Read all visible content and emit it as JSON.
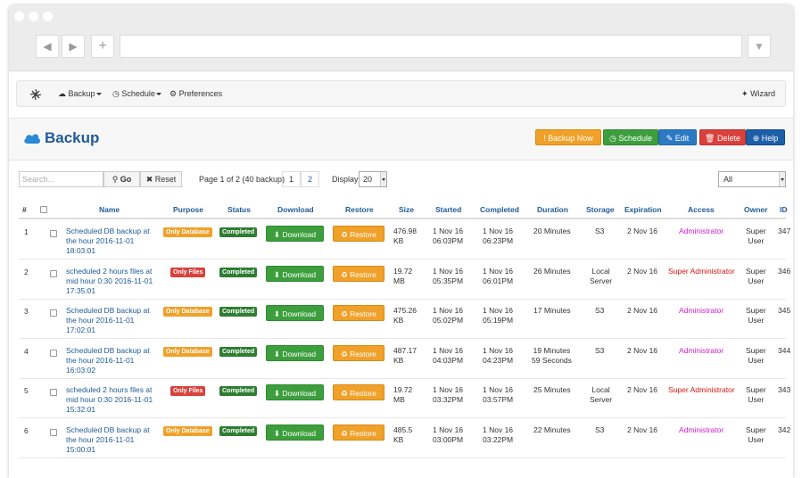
{
  "toolbar": {
    "backup_label": "Backup",
    "schedule_label": "Schedule",
    "preferences_label": "Preferences",
    "wizard_label": "Wizard"
  },
  "header": {
    "title": "Backup",
    "buttons": {
      "backup_now": "Backup Now",
      "schedule": "Schedule",
      "edit": "Edit",
      "delete": "Delete",
      "help": "Help"
    }
  },
  "controls": {
    "search_placeholder": "Search...",
    "go_label": "Go",
    "reset_label": "Reset",
    "page_info": "Page 1 of 2 (40 backup)",
    "pages": [
      "1",
      "2"
    ],
    "display_label": "Display",
    "display_value": "20",
    "filter_value": "All"
  },
  "columns": [
    "#",
    "Name",
    "Purpose",
    "Status",
    "Download",
    "Restore",
    "Size",
    "Started",
    "Completed",
    "Duration",
    "Storage",
    "Expiration",
    "Access",
    "Owner",
    "ID"
  ],
  "buttons": {
    "download": "Download",
    "restore": "Restore"
  },
  "colors": {
    "link": "#1f5a96",
    "only_database": "#f0a12a",
    "only_files": "#d9413c",
    "completed": "#2e7d32",
    "administrator": "#d21bd2",
    "super_administrator": "#d9150f"
  },
  "rows": [
    {
      "num": "1",
      "name": [
        "Scheduled DB backup at",
        "the hour 2016-11-01",
        "18:03:01"
      ],
      "purpose": "Only Database",
      "status": "Completed",
      "size": [
        "476.98",
        "KB"
      ],
      "started": [
        "1 Nov 16",
        "06:03PM"
      ],
      "completed": [
        "1 Nov 16",
        "06:23PM"
      ],
      "duration": [
        "20 Minutes"
      ],
      "storage": [
        "S3"
      ],
      "expiration": "2 Nov 16",
      "access": "Administrator",
      "owner": [
        "Super",
        "User"
      ],
      "id": "347"
    },
    {
      "num": "2",
      "name": [
        "scheduled 2 hours files at",
        "mid hour 0:30 2016-11-01",
        "17:35:01"
      ],
      "purpose": "Only Files",
      "status": "Completed",
      "size": [
        "19.72",
        "MB"
      ],
      "started": [
        "1 Nov 16",
        "05:35PM"
      ],
      "completed": [
        "1 Nov 16",
        "06:01PM"
      ],
      "duration": [
        "26 Minutes"
      ],
      "storage": [
        "Local",
        "Server"
      ],
      "expiration": "2 Nov 16",
      "access": "Super Administrator",
      "owner": [
        "Super",
        "User"
      ],
      "id": "346"
    },
    {
      "num": "3",
      "name": [
        "Scheduled DB backup at",
        "the hour 2016-11-01",
        "17:02:01"
      ],
      "purpose": "Only Database",
      "status": "Completed",
      "size": [
        "475.26",
        "KB"
      ],
      "started": [
        "1 Nov 16",
        "05:02PM"
      ],
      "completed": [
        "1 Nov 16",
        "05:19PM"
      ],
      "duration": [
        "17 Minutes"
      ],
      "storage": [
        "S3"
      ],
      "expiration": "2 Nov 16",
      "access": "Administrator",
      "owner": [
        "Super",
        "User"
      ],
      "id": "345"
    },
    {
      "num": "4",
      "name": [
        "Scheduled DB backup at",
        "the hour 2016-11-01",
        "16:03:02"
      ],
      "purpose": "Only Database",
      "status": "Completed",
      "size": [
        "487.17",
        "KB"
      ],
      "started": [
        "1 Nov 16",
        "04:03PM"
      ],
      "completed": [
        "1 Nov 16",
        "04:23PM"
      ],
      "duration": [
        "19 Minutes",
        "59 Seconds"
      ],
      "storage": [
        "S3"
      ],
      "expiration": "2 Nov 16",
      "access": "Administrator",
      "owner": [
        "Super",
        "User"
      ],
      "id": "344"
    },
    {
      "num": "5",
      "name": [
        "scheduled 2 hours files at",
        "mid hour 0:30 2016-11-01",
        "15:32:01"
      ],
      "purpose": "Only Files",
      "status": "Completed",
      "size": [
        "19.72",
        "MB"
      ],
      "started": [
        "1 Nov 16",
        "03:32PM"
      ],
      "completed": [
        "1 Nov 16",
        "03:57PM"
      ],
      "duration": [
        "25 Minutes"
      ],
      "storage": [
        "Local",
        "Server"
      ],
      "expiration": "2 Nov 16",
      "access": "Super Administrator",
      "owner": [
        "Super",
        "User"
      ],
      "id": "343"
    },
    {
      "num": "6",
      "name": [
        "Scheduled DB backup at",
        "the hour 2016-11-01",
        "15:00:01"
      ],
      "purpose": "Only Database",
      "status": "Completed",
      "size": [
        "485.5",
        "KB"
      ],
      "started": [
        "1 Nov 16",
        "03:00PM"
      ],
      "completed": [
        "1 Nov 16",
        "03:22PM"
      ],
      "duration": [
        "22 Minutes"
      ],
      "storage": [
        "S3"
      ],
      "expiration": "2 Nov 16",
      "access": "Administrator",
      "owner": [
        "Super",
        "User"
      ],
      "id": "342"
    }
  ]
}
